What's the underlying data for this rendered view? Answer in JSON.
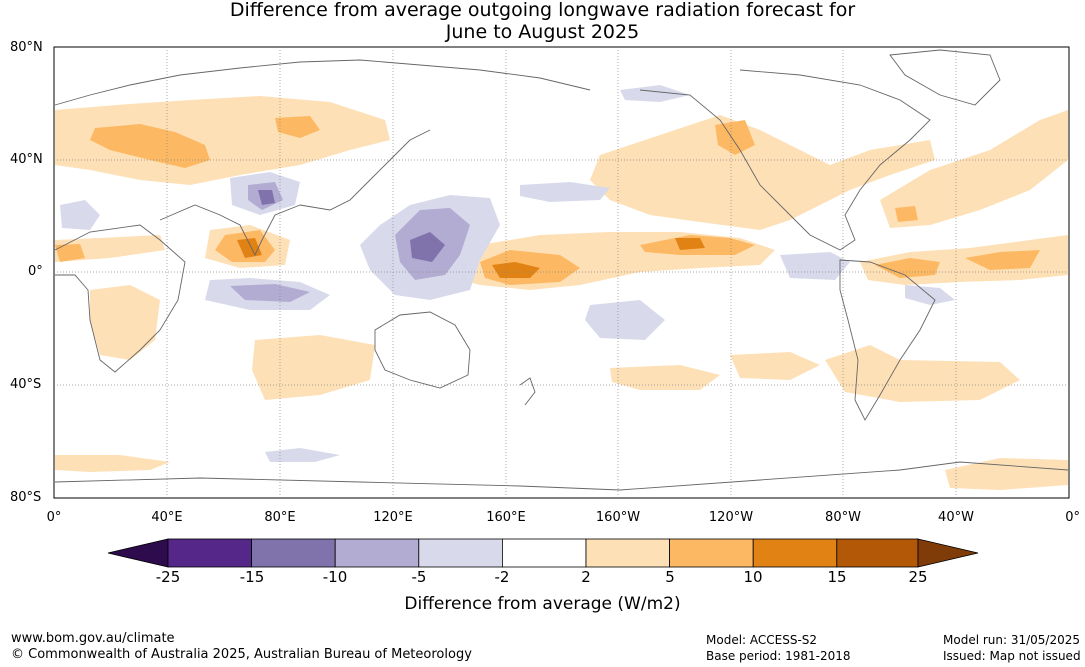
{
  "title_line1": "Difference from average outgoing longwave radiation forecast for",
  "title_line2": "June to August 2025",
  "lat_labels": [
    "80°N",
    "40°N",
    "0°",
    "40°S",
    "80°S"
  ],
  "lon_labels": [
    "0°",
    "40°E",
    "80°E",
    "120°E",
    "160°E",
    "160°W",
    "120°W",
    "80°W",
    "40°W",
    "0°"
  ],
  "colorbar": {
    "title": "Difference from average (W/m2)",
    "ticks": [
      "-25",
      "-15",
      "-10",
      "-5",
      "-2",
      "2",
      "5",
      "10",
      "15",
      "25"
    ],
    "colors": {
      "lt_-25": "#2d0b4d",
      "-25_-15": "#542788",
      "-15_-10": "#8073ac",
      "-10_-5": "#b2abd2",
      "-5_-2": "#d8daeb",
      "-2_2": "#ffffff",
      "2_5": "#fee0b6",
      "5_10": "#fdb863",
      "10_15": "#e08214",
      "15_25": "#b35806",
      "gt_25": "#7f3b08"
    }
  },
  "footer": {
    "website": "www.bom.gov.au/climate",
    "copyright": "© Commonwealth of Australia 2025, Australian Bureau of Meteorology",
    "model": "Model: ACCESS-S2",
    "base_period": "Base period: 1981-2018",
    "model_run": "Model run: 31/05/2025",
    "issued": "Issued: Map not issued"
  }
}
